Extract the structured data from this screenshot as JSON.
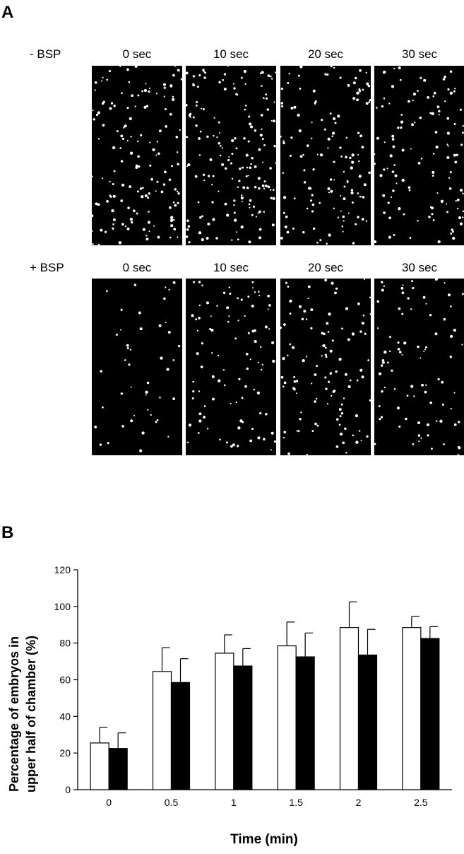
{
  "panels": {
    "a_label": "A",
    "b_label": "B"
  },
  "micrographs": {
    "rows": [
      {
        "label": "- BSP",
        "times": [
          "0 sec",
          "10 sec",
          "20 sec",
          "30 sec"
        ]
      },
      {
        "label": "+ BSP",
        "times": [
          "0 sec",
          "10 sec",
          "20 sec",
          "30 sec"
        ]
      }
    ],
    "background_color": "#000000",
    "dot_color": "#ffffff"
  },
  "chart_data": {
    "type": "bar",
    "categories": [
      "0",
      "0.5",
      "1",
      "1.5",
      "2",
      "2.5"
    ],
    "series": [
      {
        "values": [
          25.5,
          64.5,
          74.5,
          78.5,
          88.5,
          88.5
        ],
        "errors": [
          8.5,
          13,
          10,
          13,
          14,
          6
        ],
        "fill": "#ffffff"
      },
      {
        "values": [
          22.5,
          58.5,
          67.5,
          72.5,
          73.5,
          82.5
        ],
        "errors": [
          8.5,
          13,
          9.5,
          13,
          14,
          6.5
        ],
        "fill": "#000000"
      }
    ],
    "xlabel": "Time (min)",
    "ylabel_lines": [
      "Percentage of embryos in",
      "upper half of chamber (%)"
    ],
    "ylim": [
      0,
      120
    ],
    "yticks": [
      0,
      20,
      40,
      60,
      80,
      100,
      120
    ],
    "grid": false,
    "legend": "none"
  }
}
